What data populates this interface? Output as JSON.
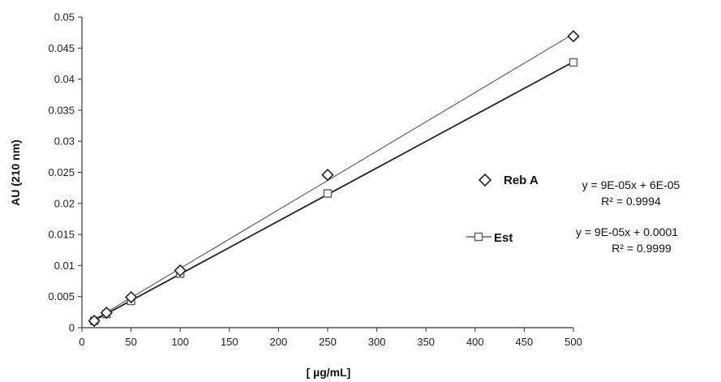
{
  "chart_data": {
    "type": "scatter",
    "title": "",
    "xlabel": "[ µg/mL]",
    "ylabel": "AU (210 nm)",
    "xlim": [
      0,
      500
    ],
    "ylim": [
      0,
      0.05
    ],
    "x_ticks": [
      "0",
      "50",
      "100",
      "150",
      "200",
      "250",
      "300",
      "350",
      "400",
      "450",
      "500"
    ],
    "y_ticks": [
      "0",
      "0.005",
      "0.01",
      "0.015",
      "0.02",
      "0.025",
      "0.03",
      "0.035",
      "0.04",
      "0.045",
      "0.05"
    ],
    "grid": false,
    "legend_position": "right",
    "series": [
      {
        "name": "Reb A",
        "marker": "diamond",
        "color": "#222222",
        "trendline_color": "#555555",
        "x": [
          12.5,
          25,
          50,
          100,
          250,
          500
        ],
        "y": [
          0.0011,
          0.0024,
          0.0049,
          0.0092,
          0.0246,
          0.0469
        ],
        "trendline": {
          "slope": 9e-05,
          "intercept": 6e-05
        },
        "equation": "y = 9E-05x + 6E-05",
        "r2": "R² = 0.9994"
      },
      {
        "name": "Est",
        "marker": "square",
        "color": "#8b4a5a",
        "trendline_color": "#222222",
        "x": [
          12.5,
          25,
          50,
          100,
          250,
          500
        ],
        "y": [
          0.0011,
          0.0022,
          0.0043,
          0.0087,
          0.0216,
          0.0427
        ],
        "trendline": {
          "slope": 9e-05,
          "intercept": 0.0001
        },
        "equation": "y = 9E-05x + 0.0001",
        "r2": "R² = 0.9999"
      }
    ]
  }
}
